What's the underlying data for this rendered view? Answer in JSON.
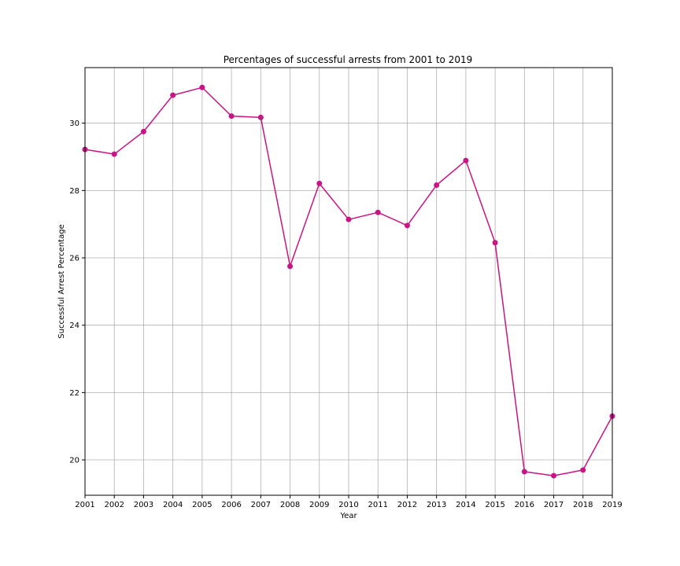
{
  "chart_data": {
    "type": "line",
    "title": "Percentages of successful arrests from 2001 to 2019",
    "xlabel": "Year",
    "ylabel": "Successful Arrest Percentage",
    "x": [
      2001,
      2002,
      2003,
      2004,
      2005,
      2006,
      2007,
      2008,
      2009,
      2010,
      2011,
      2012,
      2013,
      2014,
      2015,
      2016,
      2017,
      2018,
      2019
    ],
    "x_tick_labels": [
      "2001",
      "2002",
      "2003",
      "2004",
      "2005",
      "2006",
      "2007",
      "2008",
      "2009",
      "2010",
      "2011",
      "2012",
      "2013",
      "2014",
      "2015",
      "2016",
      "2017",
      "2018",
      "2019"
    ],
    "series": [
      {
        "values": [
          29.22,
          29.08,
          29.75,
          30.83,
          31.06,
          30.21,
          30.17,
          25.75,
          28.21,
          27.14,
          27.35,
          26.96,
          28.16,
          28.89,
          26.45,
          19.65,
          19.53,
          19.7,
          21.3
        ],
        "color": "#c71585",
        "marker": "circle"
      }
    ],
    "xlim": [
      2001,
      2019
    ],
    "ylim": [
      18.95,
      31.65
    ],
    "y_ticks": [
      20,
      22,
      24,
      26,
      28,
      30
    ],
    "y_tick_labels": [
      "20",
      "22",
      "24",
      "26",
      "28",
      "30"
    ],
    "grid": true,
    "legend": "none"
  }
}
